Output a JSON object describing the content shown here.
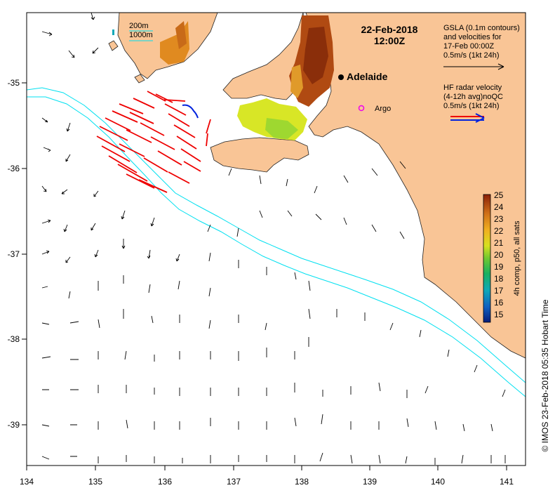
{
  "map": {
    "date": "22-Feb-2018",
    "time": "12:00Z",
    "city": "Adelaide",
    "argo_label": "Argo",
    "x_ticks": [
      "134",
      "135",
      "136",
      "137",
      "138",
      "139",
      "140",
      "141"
    ],
    "y_ticks": [
      "-35",
      "-36",
      "-37",
      "-38",
      "-39"
    ],
    "depth_legend": {
      "line1": "200m",
      "line2": "1000m"
    },
    "gsla_legend": {
      "line1": "GSLA (0.1m contours)",
      "line2": "and velocities for",
      "line3": "17-Feb 00:00Z",
      "line4": "0.5m/s (1kt 24h)"
    },
    "hf_legend": {
      "line1": "HF radar velocity",
      "line2": "(4-12h avg)noQC",
      "line3": "0.5m/s (1kt 24h)"
    },
    "colorbar": {
      "label": "4h comp, p50, all sats",
      "ticks": [
        "25",
        "24",
        "23",
        "22",
        "21",
        "20",
        "19",
        "18",
        "17",
        "16",
        "15"
      ],
      "min": 15,
      "max": 25
    },
    "credit": "© IMOS 23-Feb-2018 05:35 Hobart Time"
  },
  "colors": {
    "land": "#f9c596",
    "shelf_contour": "#00e0f0",
    "hf_arrow": "#ee0000",
    "blue_arrow": "#0022dd",
    "argo": "#ee00ee"
  }
}
